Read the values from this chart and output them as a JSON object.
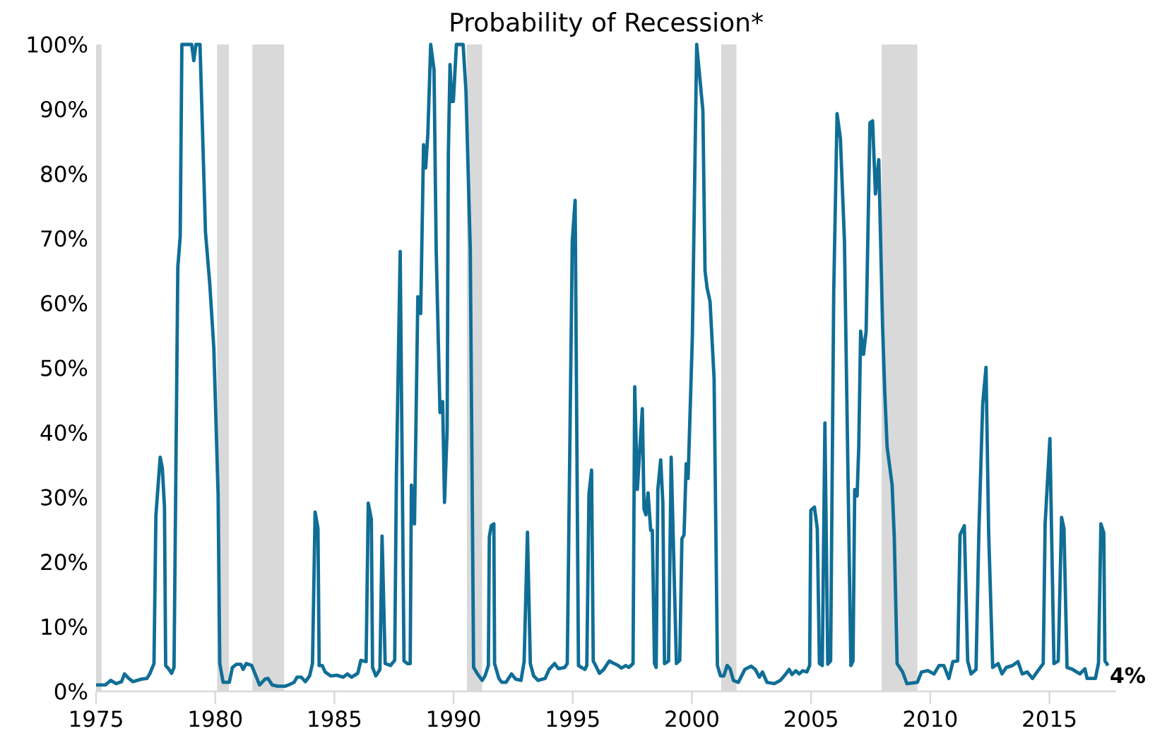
{
  "chart_data": {
    "type": "line",
    "title": "Probability of Recession*",
    "color": "#106e96",
    "x": [
      1975.0,
      1975.4,
      1975.61,
      1975.84,
      1976.07,
      1976.19,
      1976.37,
      1976.55,
      1976.9,
      1977.13,
      1977.25,
      1977.43,
      1977.51,
      1977.69,
      1977.78,
      1977.87,
      1977.92,
      1978.04,
      1978.17,
      1978.27,
      1978.43,
      1978.53,
      1978.6,
      1979.01,
      1979.1,
      1979.19,
      1979.36,
      1979.59,
      1979.77,
      1979.94,
      1980.12,
      1980.19,
      1980.33,
      1980.59,
      1980.72,
      1980.89,
      1981.07,
      1981.17,
      1981.3,
      1981.53,
      1981.86,
      1982.09,
      1982.21,
      1982.39,
      1982.62,
      1982.93,
      1983.08,
      1983.31,
      1983.43,
      1983.61,
      1983.78,
      1983.96,
      1984.08,
      1984.19,
      1984.31,
      1984.36,
      1984.49,
      1984.61,
      1984.84,
      1985.1,
      1985.37,
      1985.54,
      1985.72,
      1985.98,
      1986.11,
      1986.33,
      1986.42,
      1986.55,
      1986.6,
      1986.74,
      1986.91,
      1987.0,
      1987.13,
      1987.35,
      1987.53,
      1987.6,
      1987.76,
      1987.92,
      1988.06,
      1988.18,
      1988.23,
      1988.36,
      1988.5,
      1988.62,
      1988.74,
      1988.83,
      1988.92,
      1989.04,
      1989.18,
      1989.27,
      1989.43,
      1989.54,
      1989.62,
      1989.73,
      1989.78,
      1989.85,
      1989.92,
      1989.99,
      1990.12,
      1990.4,
      1990.52,
      1990.7,
      1990.84,
      1991.02,
      1991.2,
      1991.32,
      1991.46,
      1991.5,
      1991.58,
      1991.69,
      1991.72,
      1991.9,
      1992.02,
      1992.2,
      1992.43,
      1992.6,
      1992.83,
      1992.96,
      1993.1,
      1993.22,
      1993.36,
      1993.54,
      1993.84,
      1994.01,
      1994.24,
      1994.4,
      1994.66,
      1994.77,
      1994.98,
      1995.1,
      1995.24,
      1995.37,
      1995.51,
      1995.59,
      1995.68,
      1995.79,
      1995.86,
      1996.0,
      1996.12,
      1996.3,
      1996.53,
      1996.74,
      1996.91,
      1997.04,
      1997.23,
      1997.35,
      1997.53,
      1997.6,
      1997.71,
      1997.92,
      1997.99,
      1998.07,
      1998.16,
      1998.27,
      1998.34,
      1998.43,
      1998.5,
      1998.57,
      1998.69,
      1998.78,
      1998.85,
      1999.02,
      1999.13,
      1999.35,
      1999.49,
      1999.58,
      1999.67,
      1999.76,
      1999.84,
      2000.02,
      2000.2,
      2000.46,
      2000.55,
      2000.64,
      2000.76,
      2000.93,
      2001.07,
      2001.2,
      2001.34,
      2001.48,
      2001.6,
      2001.74,
      2001.95,
      2002.22,
      2002.48,
      2002.66,
      2002.83,
      2002.96,
      2003.15,
      2003.45,
      2003.71,
      2003.94,
      2004.08,
      2004.2,
      2004.36,
      2004.5,
      2004.65,
      2004.82,
      2004.94,
      2004.99,
      2005.14,
      2005.26,
      2005.35,
      2005.47,
      2005.58,
      2005.7,
      2005.82,
      2005.95,
      2006.09,
      2006.23,
      2006.4,
      2006.67,
      2006.76,
      2006.83,
      2006.93,
      2007.0,
      2007.08,
      2007.2,
      2007.31,
      2007.47,
      2007.58,
      2007.7,
      2007.84,
      2008.0,
      2008.09,
      2008.19,
      2008.4,
      2008.49,
      2008.61,
      2008.84,
      2009.02,
      2009.46,
      2009.63,
      2009.9,
      2010.16,
      2010.37,
      2010.57,
      2010.78,
      2010.95,
      2011.15,
      2011.25,
      2011.43,
      2011.57,
      2011.71,
      2011.92,
      2012.04,
      2012.2,
      2012.34,
      2012.45,
      2012.62,
      2012.85,
      2013.01,
      2013.19,
      2013.45,
      2013.68,
      2013.86,
      2014.07,
      2014.29,
      2014.56,
      2014.74,
      2014.82,
      2015.02,
      2015.19,
      2015.37,
      2015.51,
      2015.61,
      2015.74,
      2015.97,
      2016.28,
      2016.49,
      2016.58,
      2016.93,
      2017.06,
      2017.16,
      2017.28,
      2017.33,
      2017.46
    ],
    "values": [
      1.0,
      1.0,
      1.7,
      1.2,
      1.5,
      2.7,
      2.0,
      1.5,
      1.9,
      2.0,
      2.7,
      4.3,
      27.2,
      36.2,
      34.5,
      28.5,
      4.0,
      3.5,
      2.8,
      3.7,
      65.6,
      70.3,
      100,
      100,
      97.5,
      100,
      100,
      71.0,
      63.0,
      53.1,
      30.5,
      4.3,
      1.4,
      1.4,
      3.7,
      4.2,
      4.2,
      3.4,
      4.3,
      4.0,
      1.0,
      1.9,
      2.0,
      1.0,
      0.8,
      0.8,
      1.0,
      1.4,
      2.2,
      2.2,
      1.5,
      2.4,
      4.3,
      27.7,
      25.2,
      4.0,
      4.0,
      3.0,
      2.4,
      2.5,
      2.2,
      2.7,
      2.2,
      2.8,
      4.8,
      4.6,
      29.1,
      26.6,
      3.7,
      2.4,
      3.4,
      24.0,
      4.3,
      4.0,
      4.8,
      33.2,
      68.0,
      4.7,
      4.3,
      4.3,
      31.9,
      25.9,
      61.0,
      58.4,
      84.5,
      80.9,
      86.2,
      100,
      96.1,
      68.3,
      43.1,
      44.8,
      29.2,
      40.5,
      82.9,
      96.9,
      91.2,
      91.2,
      100,
      100,
      92.8,
      68.3,
      3.7,
      2.6,
      1.7,
      2.4,
      4.0,
      23.9,
      25.6,
      25.9,
      4.3,
      2.0,
      1.4,
      1.4,
      2.7,
      1.9,
      1.7,
      4.6,
      24.6,
      4.3,
      2.4,
      1.7,
      2.0,
      3.4,
      4.3,
      3.5,
      3.7,
      4.3,
      69.6,
      75.9,
      4.0,
      3.7,
      3.4,
      4.0,
      30.5,
      34.2,
      4.7,
      3.7,
      2.8,
      3.4,
      4.7,
      4.3,
      4.0,
      3.6,
      4.0,
      3.7,
      4.3,
      47.1,
      31.2,
      43.7,
      28.2,
      27.3,
      30.7,
      24.9,
      24.9,
      4.3,
      3.7,
      31.2,
      35.8,
      29.2,
      4.3,
      4.7,
      36.2,
      4.3,
      4.8,
      23.6,
      24.2,
      35.2,
      32.9,
      55.0,
      100,
      89.8,
      65.0,
      62.3,
      60.3,
      48.4,
      4.0,
      2.4,
      2.4,
      4.0,
      3.5,
      1.7,
      1.4,
      3.4,
      3.9,
      3.4,
      2.2,
      3.0,
      1.4,
      1.2,
      1.7,
      2.7,
      3.4,
      2.6,
      3.2,
      2.7,
      3.2,
      3.0,
      4.0,
      28.0,
      28.5,
      25.2,
      4.3,
      4.0,
      41.5,
      4.2,
      4.7,
      61.7,
      89.3,
      85.5,
      69.6,
      4.0,
      4.7,
      31.2,
      30.2,
      37.8,
      55.7,
      52.1,
      55.7,
      87.9,
      88.2,
      76.9,
      82.2,
      56.4,
      46.4,
      37.8,
      31.9,
      23.9,
      4.3,
      3.0,
      1.2,
      1.4,
      3.0,
      3.2,
      2.7,
      4.0,
      4.0,
      2.0,
      4.6,
      4.7,
      24.2,
      25.6,
      4.7,
      2.7,
      3.4,
      24.6,
      44.4,
      50.1,
      24.6,
      3.7,
      4.3,
      2.7,
      3.7,
      4.0,
      4.6,
      2.7,
      3.0,
      2.0,
      3.4,
      4.3,
      25.9,
      39.1,
      4.3,
      4.7,
      26.9,
      25.2,
      3.7,
      3.4,
      2.7,
      3.5,
      2.0,
      2.0,
      4.4,
      25.9,
      24.5,
      4.7,
      4.0
    ],
    "xlim": [
      1975,
      2017.8
    ],
    "ylim": [
      0,
      100
    ],
    "xticks": [
      1975,
      1980,
      1985,
      1990,
      1995,
      2000,
      2005,
      2010,
      2015
    ],
    "yticks": [
      {
        "value": 0,
        "label": "0%"
      },
      {
        "value": 10,
        "label": "10%"
      },
      {
        "value": 20,
        "label": "20%"
      },
      {
        "value": 30,
        "label": "30%"
      },
      {
        "value": 40,
        "label": "40%"
      },
      {
        "value": 50,
        "label": "50%"
      },
      {
        "value": 60,
        "label": "60%"
      },
      {
        "value": 70,
        "label": "70%"
      },
      {
        "value": 80,
        "label": "80%"
      },
      {
        "value": 90,
        "label": "90%"
      },
      {
        "value": 100,
        "label": "100%"
      }
    ],
    "bands": [
      {
        "axis": "x",
        "from": 1975.0,
        "to": 1975.23,
        "color": "#d9d9d9"
      },
      {
        "axis": "x",
        "from": 1980.08,
        "to": 1980.57,
        "color": "#d9d9d9"
      },
      {
        "axis": "x",
        "from": 1981.56,
        "to": 1982.89,
        "color": "#d9d9d9"
      },
      {
        "axis": "x",
        "from": 1990.56,
        "to": 1991.2,
        "color": "#d9d9d9"
      },
      {
        "axis": "x",
        "from": 2001.23,
        "to": 2001.87,
        "color": "#d9d9d9"
      },
      {
        "axis": "x",
        "from": 2007.96,
        "to": 2009.46,
        "color": "#d9d9d9"
      }
    ],
    "annotations": [
      {
        "text": "4%",
        "x": 2017.46,
        "y": 4
      }
    ]
  }
}
